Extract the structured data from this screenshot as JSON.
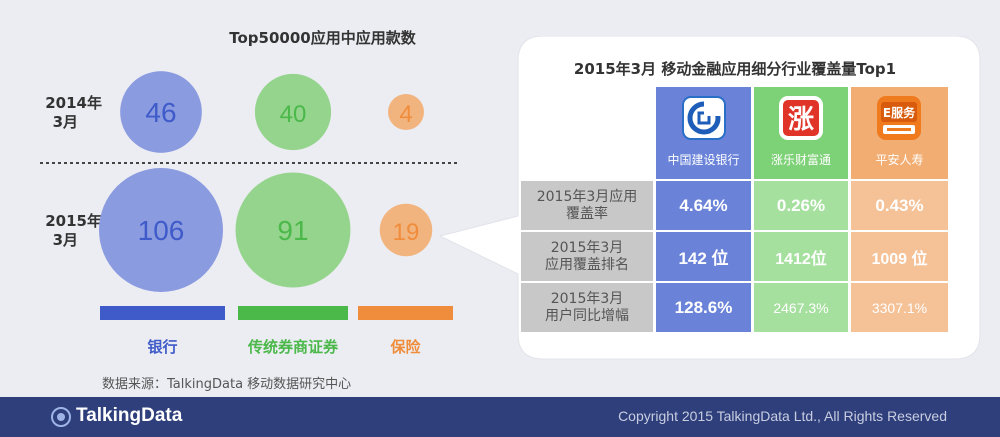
{
  "colors": {
    "bank": "#3f5bc9",
    "securities": "#4bb84a",
    "insurance": "#ef8d3c",
    "bank_bubble": "#8b9be0",
    "securities_bubble": "#95d48c",
    "insurance_bubble": "#f2b47e",
    "footer": "#2e3f7c"
  },
  "chart_data": {
    "type": "bubble",
    "title": "Top50000应用中应用款数",
    "categories": [
      "银行",
      "传统券商证券",
      "保险"
    ],
    "rows": [
      "2014年\n3月",
      "2015年\n3月"
    ],
    "series": [
      {
        "name": "2014年3月",
        "values": [
          46,
          40,
          4
        ]
      },
      {
        "name": "2015年3月",
        "values": [
          106,
          91,
          19
        ]
      }
    ]
  },
  "row_labels": {
    "r2014": [
      "2014年",
      "3月"
    ],
    "r2015": [
      "2015年",
      "3月"
    ]
  },
  "source": "数据来源：TalkingData 移动数据研究中心",
  "table": {
    "title": "2015年3月 移动金融应用细分行业覆盖量Top1",
    "apps": [
      {
        "name": "中国建设银行",
        "icon": "ccb-logo-icon"
      },
      {
        "name": "涨乐财富通",
        "icon": "zhangle-logo-icon"
      },
      {
        "name": "平安人寿",
        "icon": "pingan-logo-icon"
      }
    ],
    "rows": [
      {
        "label": [
          "2015年3月应用",
          "覆盖率"
        ],
        "values": [
          "4.64%",
          "0.26%",
          "0.43%"
        ]
      },
      {
        "label": [
          "2015年3月",
          "应用覆盖排名"
        ],
        "values": [
          "142 位",
          "1412位",
          "1009 位"
        ]
      },
      {
        "label": [
          "2015年3月",
          "用户同比增幅"
        ],
        "values": [
          "128.6%",
          "2467.3%",
          "3307.1%"
        ]
      }
    ]
  },
  "footer": {
    "logo": "TalkingData",
    "copyright": "Copyright 2015 TalkingData Ltd., All Rights Reserved"
  }
}
